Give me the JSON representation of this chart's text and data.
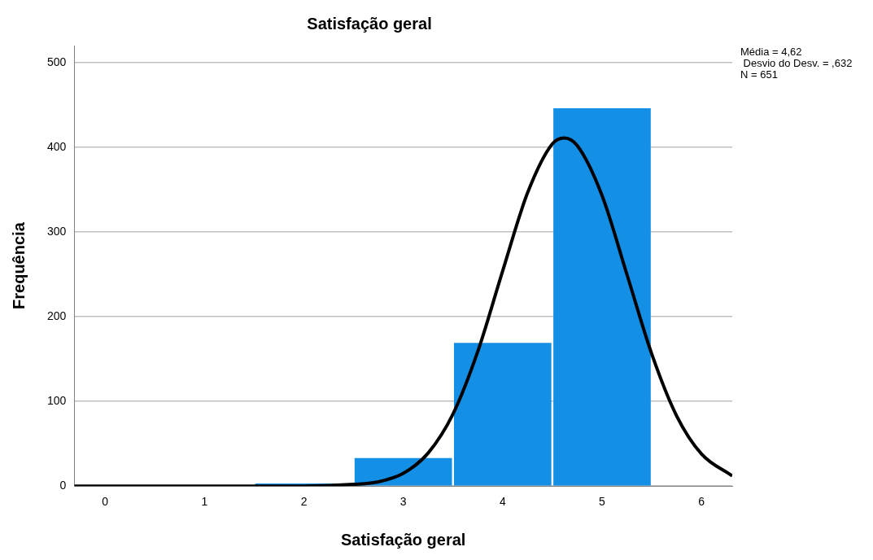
{
  "chart_data": {
    "type": "histogram",
    "title": "Satisfação geral",
    "xlabel": "Satisfação geral",
    "ylabel": "Frequência",
    "bins": [
      1.5,
      2.5,
      3.5,
      4.5,
      5.5
    ],
    "values": [
      3,
      33,
      169,
      446
    ],
    "color": "#1390e6",
    "series": [
      {
        "type": "line",
        "color": "#000000",
        "x": [
          -0.31,
          1,
          2,
          2.5,
          2.75,
          3,
          3.25,
          3.5,
          3.75,
          4,
          4.25,
          4.5,
          4.62,
          4.75,
          5,
          5.25,
          5.5,
          5.75,
          6,
          6.31
        ],
        "values": [
          0,
          0,
          0,
          2,
          5,
          15,
          39,
          85,
          159,
          254,
          346,
          404,
          411,
          402,
          343,
          250,
          156,
          83,
          38,
          12
        ]
      }
    ],
    "xlim": [
      -0.31,
      6.31
    ],
    "xticks": [
      0,
      1,
      2,
      3,
      4,
      5,
      6
    ],
    "ylim": [
      0,
      520
    ],
    "yticks": [
      0,
      100,
      200,
      300,
      400,
      500
    ],
    "grid": "y",
    "marker": "none",
    "line_style": "solid",
    "annotations": [
      "Média = 4,62\n Desvio do Desv. = ,632\nN = 651"
    ]
  }
}
